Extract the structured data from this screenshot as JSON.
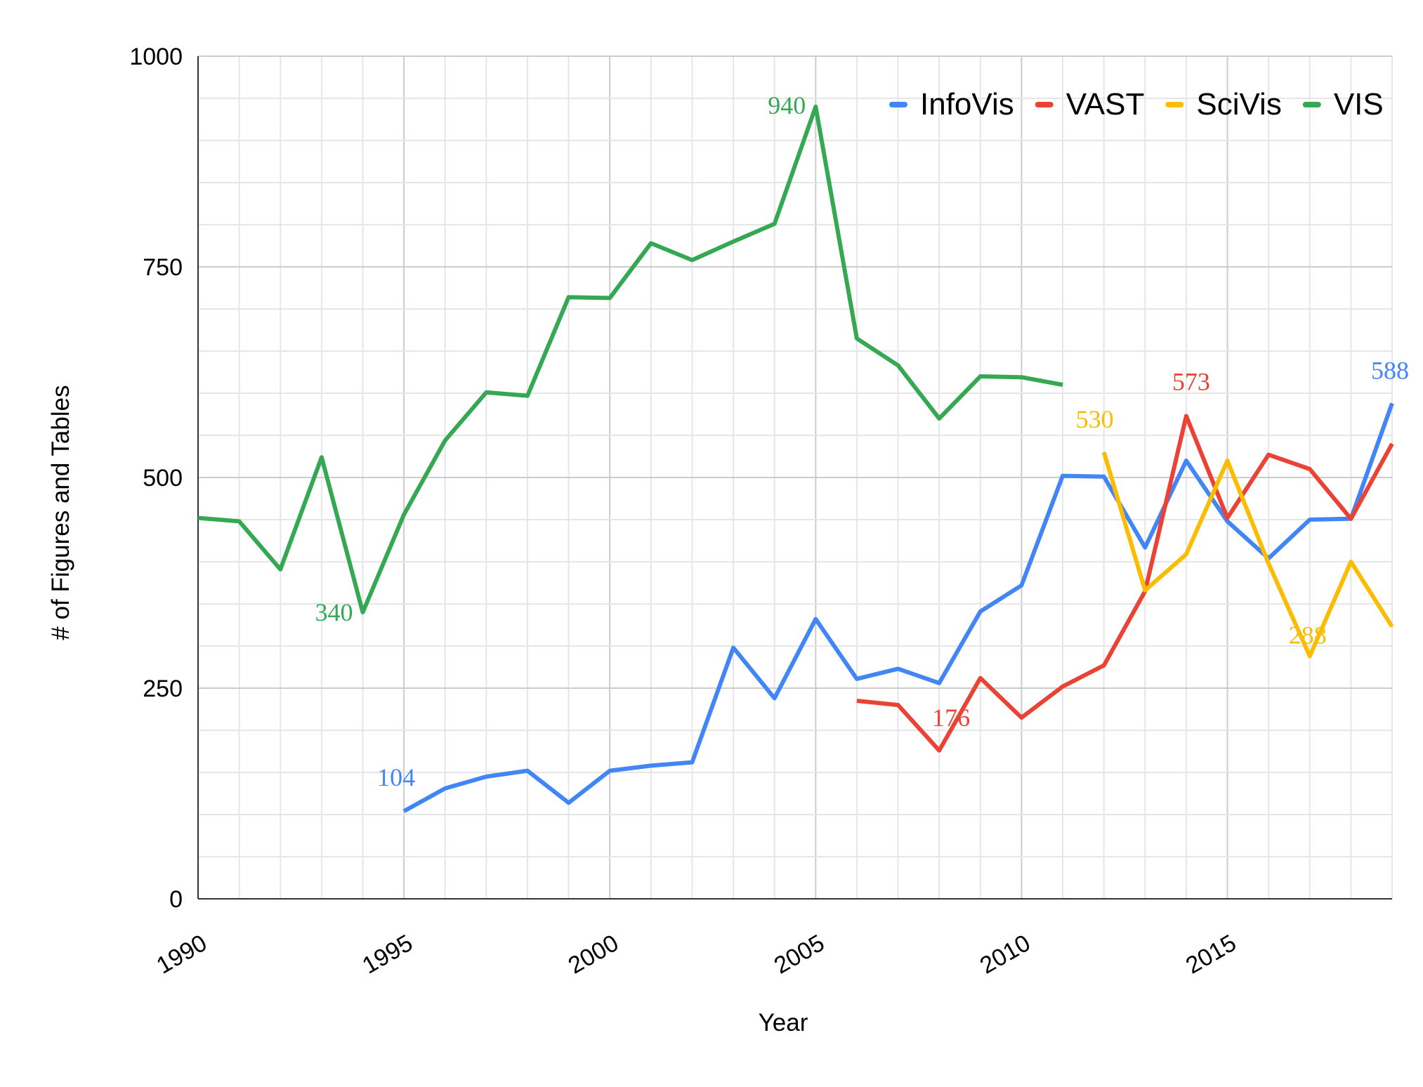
{
  "chart_data": {
    "type": "line",
    "title": "",
    "xlabel": "Year",
    "ylabel": "# of Figures and Tables",
    "xlim": [
      1990,
      2019
    ],
    "ylim": [
      0,
      1000
    ],
    "x_ticks": [
      1990,
      1995,
      2000,
      2005,
      2010,
      2015
    ],
    "y_ticks": [
      0,
      250,
      500,
      750,
      1000
    ],
    "grid": true,
    "legend": "top-right",
    "series": [
      {
        "name": "InfoVis",
        "color": "#4285F4",
        "x": [
          1995,
          1996,
          1997,
          1998,
          1999,
          2000,
          2001,
          2002,
          2003,
          2004,
          2005,
          2006,
          2007,
          2008,
          2009,
          2010,
          2011,
          2012,
          2013,
          2014,
          2015,
          2016,
          2017,
          2018,
          2019
        ],
        "values": [
          104,
          131,
          145,
          152,
          114,
          152,
          158,
          162,
          298,
          238,
          332,
          261,
          273,
          256,
          341,
          372,
          502,
          501,
          417,
          520,
          448,
          404,
          450,
          451,
          588
        ]
      },
      {
        "name": "VAST",
        "color": "#EA4335",
        "x": [
          2006,
          2007,
          2008,
          2009,
          2010,
          2011,
          2012,
          2013,
          2014,
          2015,
          2016,
          2017,
          2018,
          2019
        ],
        "values": [
          235,
          230,
          176,
          262,
          215,
          252,
          277,
          365,
          573,
          452,
          527,
          510,
          451,
          540
        ]
      },
      {
        "name": "SciVis",
        "color": "#FBBC04",
        "x": [
          2012,
          2013,
          2014,
          2015,
          2016,
          2017,
          2018,
          2019
        ],
        "values": [
          530,
          366,
          409,
          520,
          398,
          288,
          400,
          323
        ]
      },
      {
        "name": "VIS",
        "color": "#34A853",
        "x": [
          1990,
          1991,
          1992,
          1993,
          1994,
          1995,
          1996,
          1997,
          1998,
          1999,
          2000,
          2001,
          2002,
          2003,
          2004,
          2005,
          2006,
          2007,
          2008,
          2009,
          2010,
          2011
        ],
        "values": [
          452,
          448,
          391,
          524,
          340,
          456,
          544,
          601,
          597,
          714,
          713,
          778,
          758,
          780,
          801,
          940,
          665,
          633,
          570,
          620,
          619,
          610
        ]
      }
    ],
    "annotations": [
      {
        "text": "940",
        "x": 2005,
        "y": 940,
        "series": "VIS"
      },
      {
        "text": "340",
        "x": 1994,
        "y": 340,
        "series": "VIS"
      },
      {
        "text": "104",
        "x": 1995,
        "y": 104,
        "series": "InfoVis"
      },
      {
        "text": "176",
        "x": 2008,
        "y": 176,
        "series": "VAST"
      },
      {
        "text": "530",
        "x": 2012,
        "y": 530,
        "series": "SciVis"
      },
      {
        "text": "573",
        "x": 2014,
        "y": 573,
        "series": "VAST"
      },
      {
        "text": "288",
        "x": 2017,
        "y": 288,
        "series": "SciVis"
      },
      {
        "text": "588",
        "x": 2019,
        "y": 588,
        "series": "InfoVis"
      }
    ]
  }
}
